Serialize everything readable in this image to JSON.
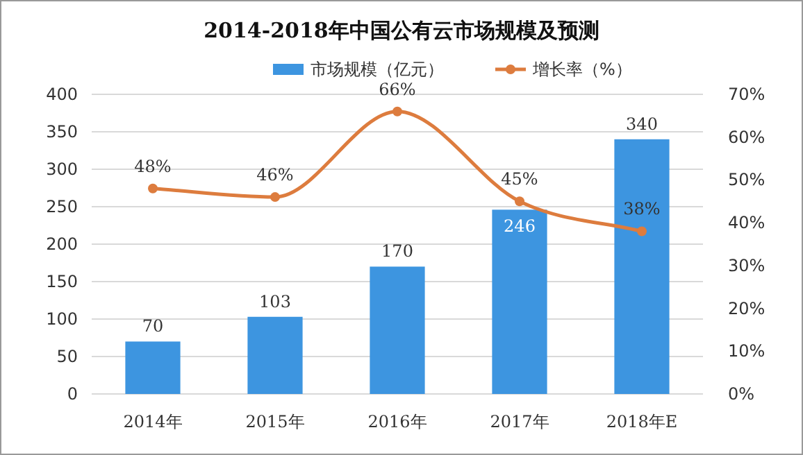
{
  "chart_data": {
    "type": "bar",
    "title": "2014-2018年中国公有云市场规模及预测",
    "categories": [
      "2014年",
      "2015年",
      "2016年",
      "2017年",
      "2018年E"
    ],
    "series": [
      {
        "name": "市场规模（亿元）",
        "color": "#3d95e0",
        "values": [
          70,
          103,
          170,
          246,
          340
        ],
        "value_labels": [
          "70",
          "103",
          "170",
          "246",
          "340"
        ]
      },
      {
        "name": "增长率（%）",
        "type": "line",
        "axis": "y2",
        "color": "#dd7c3e",
        "values": [
          48,
          46,
          66,
          45,
          38
        ],
        "value_labels": [
          "48%",
          "46%",
          "66%",
          "45%",
          "38%"
        ]
      }
    ],
    "ylim": [
      0,
      400
    ],
    "yticks": [
      0,
      50,
      100,
      150,
      200,
      250,
      300,
      350,
      400
    ],
    "y2lim": [
      0,
      70
    ],
    "y2ticks": [
      {
        "value": 0,
        "label": "0%"
      },
      {
        "value": 10,
        "label": "10%"
      },
      {
        "value": 20,
        "label": "20%"
      },
      {
        "value": 30,
        "label": "30%"
      },
      {
        "value": 40,
        "label": "40%"
      },
      {
        "value": 50,
        "label": "50%"
      },
      {
        "value": 60,
        "label": "60%"
      },
      {
        "value": 70,
        "label": "70%"
      }
    ],
    "grid": "y",
    "legend": "top",
    "marker": "circle"
  }
}
